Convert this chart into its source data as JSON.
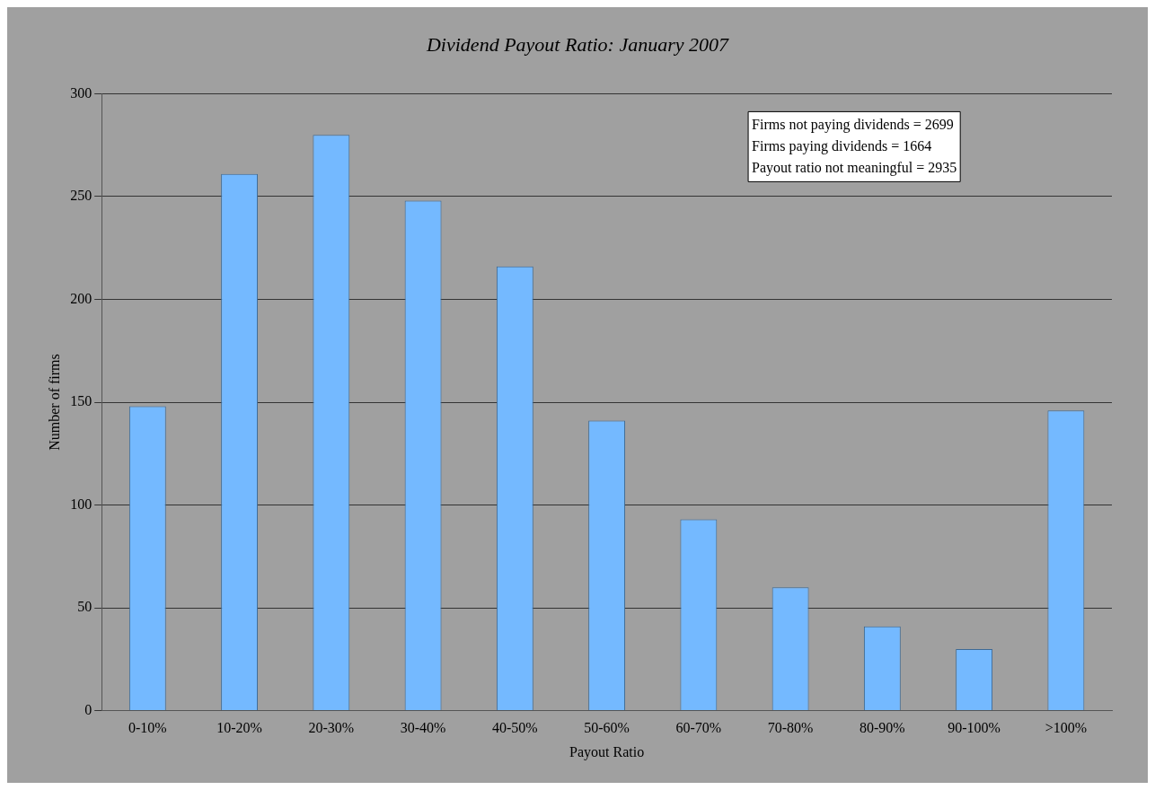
{
  "chart_data": {
    "type": "bar",
    "title": "Dividend Payout Ratio: January 2007",
    "xlabel": "Payout Ratio",
    "ylabel": "Number of firms",
    "categories": [
      "0-10%",
      "10-20%",
      "20-30%",
      "30-40%",
      "40-50%",
      "50-60%",
      "60-70%",
      "70-80%",
      "80-90%",
      "90-100%",
      ">100%"
    ],
    "values": [
      148,
      261,
      280,
      248,
      216,
      141,
      93,
      60,
      41,
      30,
      146
    ],
    "color": "#74b9ff",
    "ylim": [
      0,
      300
    ],
    "yticks": [
      0,
      50,
      100,
      150,
      200,
      250,
      300
    ],
    "grid": "y",
    "legend": false,
    "annotations": [
      "Firms not paying dividends = 2699",
      "Firms paying dividends = 1664",
      "Payout ratio not meaningful = 2935"
    ]
  }
}
